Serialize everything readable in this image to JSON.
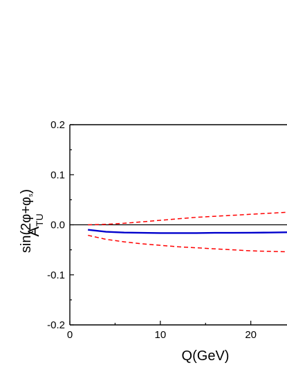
{
  "chart_data": {
    "type": "line",
    "title": "",
    "xlabel": "Q(GeV)",
    "ylabel_main": "A",
    "ylabel_sub": "TU",
    "ylabel_sup": "sin(2φ+φ",
    "ylabel_sup_sub": "s",
    "ylabel_sup_close": ")",
    "xlim": [
      0,
      24.0
    ],
    "ylim": [
      -0.2,
      0.2
    ],
    "x_ticks": [
      0,
      10,
      20
    ],
    "y_ticks": [
      -0.2,
      -0.1,
      0.0,
      0.1,
      0.2
    ],
    "x_tick_labels": [
      "0",
      "10",
      "20"
    ],
    "y_tick_labels": [
      "-0.2",
      "-0.1",
      "0.0",
      "0.1",
      "0.2"
    ],
    "reference_line_y": 0.0,
    "grid": false,
    "legend": "none",
    "series": [
      {
        "style": "solid",
        "color": "#0000cc",
        "x": [
          2,
          4,
          6,
          8,
          10,
          12,
          14,
          16,
          18,
          20,
          22,
          24
        ],
        "y": [
          -0.01,
          -0.014,
          -0.0155,
          -0.016,
          -0.0165,
          -0.0165,
          -0.0165,
          -0.016,
          -0.016,
          -0.0158,
          -0.0155,
          -0.015
        ]
      },
      {
        "style": "dashed",
        "color": "#ff0000",
        "x": [
          2,
          4,
          6,
          8,
          10,
          12,
          14,
          16,
          18,
          20,
          22,
          24
        ],
        "y": [
          0.0,
          0.001,
          0.003,
          0.006,
          0.009,
          0.012,
          0.015,
          0.017,
          0.019,
          0.021,
          0.023,
          0.025
        ]
      },
      {
        "style": "dashed",
        "color": "#ff0000",
        "x": [
          2,
          4,
          6,
          8,
          10,
          12,
          14,
          16,
          18,
          20,
          22,
          24
        ],
        "y": [
          -0.021,
          -0.029,
          -0.034,
          -0.038,
          -0.041,
          -0.044,
          -0.046,
          -0.048,
          -0.05,
          -0.052,
          -0.053,
          -0.054
        ]
      }
    ]
  }
}
